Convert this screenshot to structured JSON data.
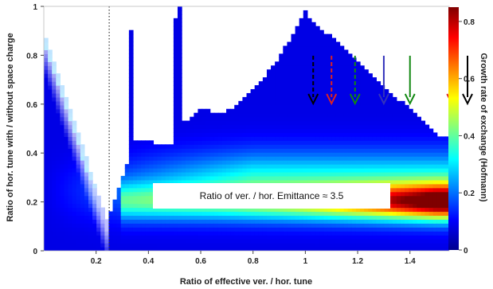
{
  "chart_data": {
    "type": "heatmap",
    "title": "",
    "xlabel": "Ratio of effective ver. / hor. tune",
    "ylabel": "Ratio of  hor. tune with / without space charge",
    "colorbar_label": "Growth rate of exchange (Hofmann)",
    "xlim": [
      0,
      1.55
    ],
    "ylim": [
      0,
      1
    ],
    "clim": [
      0,
      0.85
    ],
    "colormap": "jet",
    "x_ticks": [
      0.2,
      0.4,
      0.6,
      0.8,
      1,
      1.2,
      1.4
    ],
    "x_tick_labels": [
      "0.2",
      "0.4",
      "0.6",
      "0.8",
      "1",
      "1.2",
      "1.4"
    ],
    "y_ticks": [
      0,
      0.2,
      0.4,
      0.6,
      0.8,
      1
    ],
    "y_tick_labels": [
      "0",
      "0.2",
      "0.4",
      "0.6",
      "0.8",
      "1"
    ],
    "colorbar_ticks": [
      0,
      0.2,
      0.4,
      0.6,
      0.8
    ],
    "colorbar_tick_labels": [
      "0",
      "0.2",
      "0.4",
      "0.6",
      "0.8"
    ],
    "vertical_reference_line": {
      "x": 0.25,
      "style": "dotted"
    },
    "stopbands": [
      {
        "x": 0.33,
        "top": 0.47
      },
      {
        "x": 0.5,
        "top": 0.95
      },
      {
        "x": 1.0,
        "top": 0.97
      }
    ],
    "max_growth_region": {
      "x": 1.5,
      "y": 0.2,
      "value": 0.85
    },
    "annotation": "Ratio of ver. / hor. Emittance ≈ 3.5",
    "arrows": [
      {
        "x": 1.03,
        "color": "#000000",
        "style": "dashed"
      },
      {
        "x": 1.1,
        "color": "#dd2222",
        "style": "dashed"
      },
      {
        "x": 1.19,
        "color": "#118811",
        "style": "dashed"
      },
      {
        "x": 1.3,
        "color": "#3333bb",
        "style": "solid"
      },
      {
        "x": 1.4,
        "color": "#118811",
        "style": "solid"
      },
      {
        "x": 1.56,
        "color": "#dd2222",
        "style": "solid"
      },
      {
        "x": 1.62,
        "color": "#000000",
        "style": "solid"
      }
    ]
  }
}
